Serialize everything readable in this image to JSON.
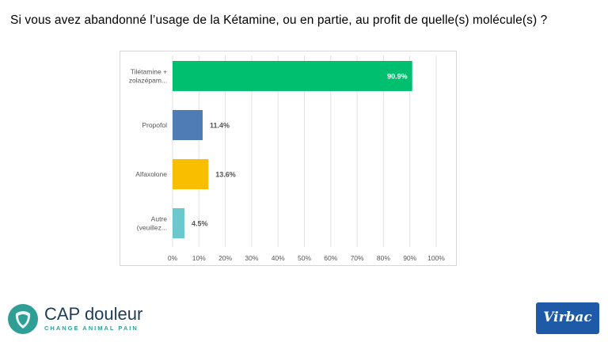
{
  "title": "Si vous avez abandonné l’usage de la Kétamine, ou en partie, au profit de quelle(s) molécule(s) ?",
  "chart_data": {
    "type": "bar",
    "orientation": "horizontal",
    "categories": [
      [
        "Tilétamine +",
        "zolazépam..."
      ],
      [
        "Propofol"
      ],
      [
        "Alfaxolone"
      ],
      [
        "Autre",
        "(veuillez..."
      ]
    ],
    "values": [
      90.9,
      11.4,
      13.6,
      4.5
    ],
    "value_labels": [
      "90.9%",
      "11.4%",
      "13.6%",
      "4.5%"
    ],
    "colors": [
      "#00bf6f",
      "#507cb6",
      "#f9be00",
      "#6bc8cd"
    ],
    "xlim": [
      0,
      100
    ],
    "x_ticks": [
      "0%",
      "10%",
      "20%",
      "30%",
      "40%",
      "50%",
      "60%",
      "70%",
      "80%",
      "90%",
      "100%"
    ],
    "grid": "vertical"
  },
  "logos": {
    "cap": {
      "name": "CAP douleur",
      "tagline": "CHANGE ANIMAL PAIN",
      "color": "#2f9f95",
      "icon": "paw-shield-icon"
    },
    "virbac": {
      "name": "Virbac",
      "color": "#1f5aa6"
    }
  }
}
